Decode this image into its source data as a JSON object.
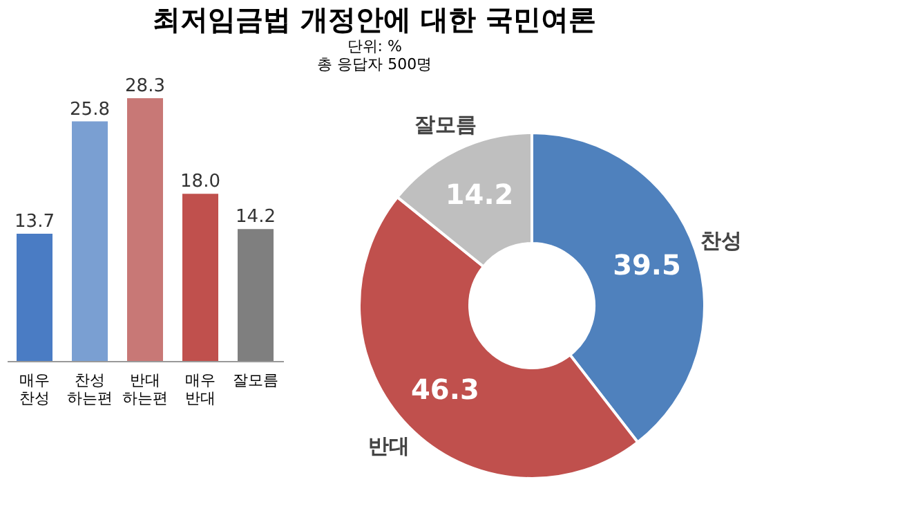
{
  "chart_data": [
    {
      "type": "bar",
      "title": "최저임금법 개정안에 대한 국민여론",
      "annotations": [
        "단위: %",
        "총 응답자 500명"
      ],
      "categories": [
        "매우 찬성",
        "찬성 하는편",
        "반대 하는편",
        "매우 반대",
        "잘모름"
      ],
      "values": [
        13.7,
        25.8,
        28.3,
        18.0,
        14.2
      ],
      "value_labels": [
        "13.7",
        "25.8",
        "28.3",
        "18.0",
        "14.2"
      ],
      "colors": [
        "#4a7cc4",
        "#7a9fd2",
        "#c87876",
        "#c0504d",
        "#7f7f7f"
      ],
      "data_labels": true
    },
    {
      "type": "donut",
      "categories": [
        "찬성",
        "반대",
        "잘모름"
      ],
      "values": [
        39.5,
        46.3,
        14.2
      ],
      "colors": [
        "#4f81bd",
        "#c0504d",
        "#bfbfbf"
      ],
      "data_labels": true
    }
  ]
}
